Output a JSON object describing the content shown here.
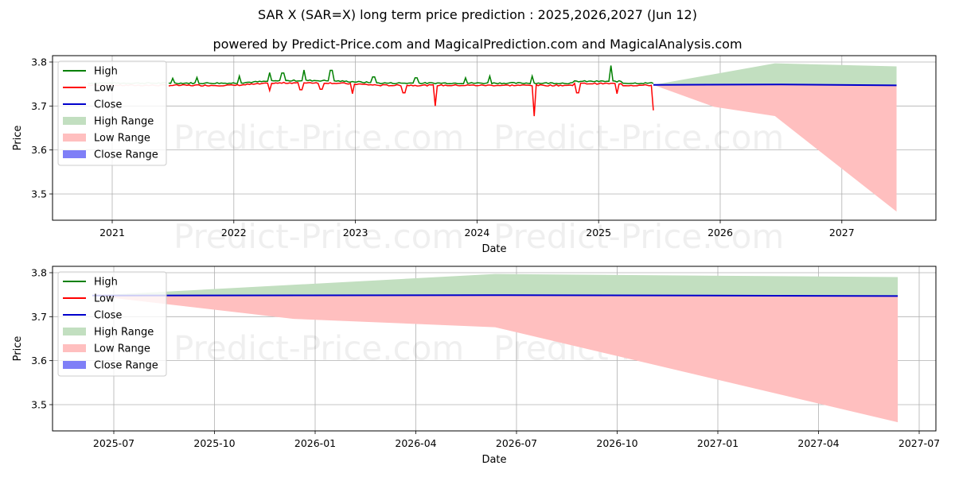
{
  "header": {
    "title": "SAR X (SAR=X) long term price prediction : 2025,2026,2027 (Jun 12)",
    "subtitle": "powered by Predict-Price.com and MagicalPrediction.com and MagicalAnalysis.com"
  },
  "watermark": "Predict-Price.com",
  "colors": {
    "high": "#008000",
    "low": "#ff0000",
    "close": "#0000cc",
    "high_range": "#c2dfc0",
    "low_range": "#ffbfbf",
    "close_range": "#7f7ff7",
    "grid": "#b0b0b0"
  },
  "legend": [
    {
      "label": "High",
      "type": "line",
      "color_key": "high"
    },
    {
      "label": "Low",
      "type": "line",
      "color_key": "low"
    },
    {
      "label": "Close",
      "type": "line",
      "color_key": "close"
    },
    {
      "label": "High Range",
      "type": "patch",
      "color_key": "high_range"
    },
    {
      "label": "Low Range",
      "type": "patch",
      "color_key": "low_range"
    },
    {
      "label": "Close Range",
      "type": "patch",
      "color_key": "close_range"
    }
  ],
  "chart_data": [
    {
      "type": "line",
      "panel": "top",
      "xlabel": "Date",
      "ylabel": "Price",
      "grid": true,
      "legend_position": "upper left",
      "x_ticks": [
        "2021",
        "2022",
        "2023",
        "2024",
        "2025",
        "2026",
        "2027"
      ],
      "y_ticks": [
        3.5,
        3.6,
        3.7,
        3.8
      ],
      "xlim": [
        2020.5,
        2027.75
      ],
      "ylim": [
        3.44,
        3.815
      ],
      "history": {
        "x_range": [
          2020.8,
          2025.45
        ],
        "high_baseline": 3.752,
        "low_baseline": 3.747,
        "high_spikes": [
          [
            2021.5,
            3.763
          ],
          [
            2021.7,
            3.765
          ],
          [
            2022.05,
            3.768
          ],
          [
            2022.3,
            3.776
          ],
          [
            2022.4,
            3.775
          ],
          [
            2022.58,
            3.782
          ],
          [
            2022.8,
            3.781
          ],
          [
            2023.15,
            3.766
          ],
          [
            2023.5,
            3.764
          ],
          [
            2023.9,
            3.764
          ],
          [
            2024.1,
            3.768
          ],
          [
            2024.45,
            3.768
          ],
          [
            2025.1,
            3.792
          ]
        ],
        "low_spikes": [
          [
            2022.3,
            3.735
          ],
          [
            2022.55,
            3.737
          ],
          [
            2022.72,
            3.738
          ],
          [
            2022.98,
            3.728
          ],
          [
            2023.4,
            3.73
          ],
          [
            2023.66,
            3.7
          ],
          [
            2024.47,
            3.677
          ],
          [
            2024.83,
            3.73
          ],
          [
            2025.15,
            3.728
          ],
          [
            2025.45,
            3.69
          ]
        ]
      },
      "series": [
        {
          "name": "Close",
          "x": [
            2025.45,
            2026.5,
            2027.45
          ],
          "values": [
            3.748,
            3.749,
            3.747
          ]
        },
        {
          "name": "High Range",
          "x": [
            2025.45,
            2026.45,
            2027.45
          ],
          "upper": [
            3.748,
            3.797,
            3.79
          ],
          "lower": [
            3.748,
            3.749,
            3.747
          ]
        },
        {
          "name": "Low Range",
          "x": [
            2025.45,
            2025.95,
            2026.45,
            2027.45
          ],
          "upper": [
            3.748,
            3.749,
            3.749,
            3.747
          ],
          "lower": [
            3.748,
            3.698,
            3.677,
            3.46
          ]
        }
      ]
    },
    {
      "type": "line",
      "panel": "bottom",
      "xlabel": "Date",
      "ylabel": "Price",
      "grid": true,
      "legend_position": "upper left",
      "x_ticks": [
        "2025-07",
        "2025-10",
        "2026-01",
        "2026-04",
        "2026-07",
        "2026-10",
        "2027-01",
        "2027-04",
        "2027-07"
      ],
      "y_ticks": [
        3.5,
        3.6,
        3.7,
        3.8
      ],
      "ylim": [
        3.44,
        3.815
      ],
      "series": [
        {
          "name": "Close",
          "x": [
            "2025-06-12",
            "2026-06-12",
            "2027-06-12"
          ],
          "values": [
            3.748,
            3.749,
            3.747
          ]
        },
        {
          "name": "High Range",
          "x": [
            "2025-06-12",
            "2026-06-12",
            "2027-06-12"
          ],
          "upper": [
            3.748,
            3.797,
            3.79
          ],
          "lower": [
            3.748,
            3.749,
            3.747
          ]
        },
        {
          "name": "Low Range",
          "x": [
            "2025-06-12",
            "2025-12-12",
            "2026-06-12",
            "2027-06-12"
          ],
          "upper": [
            3.748,
            3.749,
            3.749,
            3.747
          ],
          "lower": [
            3.748,
            3.695,
            3.676,
            3.46
          ]
        }
      ]
    }
  ]
}
